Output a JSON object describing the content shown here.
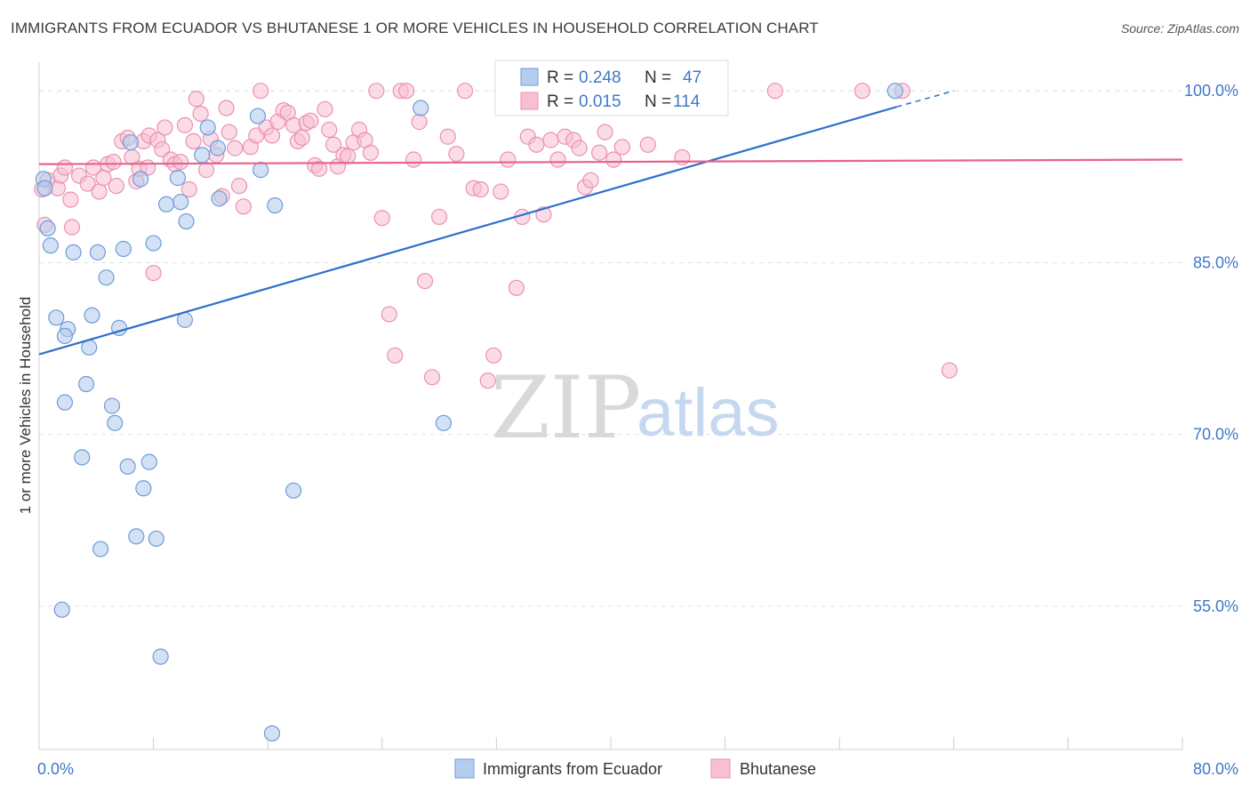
{
  "title": "IMMIGRANTS FROM ECUADOR VS BHUTANESE 1 OR MORE VEHICLES IN HOUSEHOLD CORRELATION CHART",
  "source": "Source: ZipAtlas.com",
  "watermark": {
    "zip": "ZIP",
    "atlas": "atlas"
  },
  "colors": {
    "ecuador_fill": "#b5cdef",
    "ecuador_stroke": "#6f9bd8",
    "ecuador_line": "#2f6fca",
    "bhutanese_fill": "#f7bfd1",
    "bhutanese_stroke": "#eb91b0",
    "bhutanese_line": "#e8628f",
    "tick_text": "#3f78c7",
    "grid": "#e2e2e2"
  },
  "stats_box": {
    "rows": [
      {
        "r_label": "R =",
        "r_value": "0.248",
        "n_label": "N =",
        "n_value": "47"
      },
      {
        "r_label": "R =",
        "r_value": "0.015",
        "n_label": "N =",
        "n_value": "114"
      }
    ]
  },
  "chart_data": {
    "type": "scatter",
    "title": "IMMIGRANTS FROM ECUADOR VS BHUTANESE 1 OR MORE VEHICLES IN HOUSEHOLD CORRELATION CHART",
    "xlabel": "",
    "ylabel": "1 or more Vehicles in Household",
    "xlim": [
      0,
      80
    ],
    "ylim": [
      42.5,
      102.5
    ],
    "x_tick_labels": [
      {
        "value": 0,
        "label": "0.0%"
      },
      {
        "value": 80,
        "label": "80.0%"
      }
    ],
    "y_tick_labels": [
      {
        "value": 100,
        "label": "100.0%"
      },
      {
        "value": 85,
        "label": "85.0%"
      },
      {
        "value": 70,
        "label": "70.0%"
      },
      {
        "value": 55,
        "label": "55.0%"
      }
    ],
    "grid": true,
    "legend_position": "bottom",
    "series": [
      {
        "name": "Immigrants from Ecuador",
        "R": 0.248,
        "N": 47,
        "trend": {
          "x0": 0,
          "y0": 77.0,
          "x1": 60,
          "y1": 98.6,
          "dash_to_x": 64,
          "dash_to_y": 100.0
        },
        "points": [
          [
            0.3,
            92.3
          ],
          [
            0.4,
            91.5
          ],
          [
            0.6,
            88.0
          ],
          [
            0.8,
            86.5
          ],
          [
            2.4,
            85.9
          ],
          [
            4.1,
            85.9
          ],
          [
            5.9,
            86.2
          ],
          [
            8.0,
            86.7
          ],
          [
            4.7,
            83.7
          ],
          [
            1.2,
            80.2
          ],
          [
            3.7,
            80.4
          ],
          [
            2.0,
            79.2
          ],
          [
            5.6,
            79.3
          ],
          [
            10.2,
            80.0
          ],
          [
            1.8,
            78.6
          ],
          [
            3.5,
            77.6
          ],
          [
            3.3,
            74.4
          ],
          [
            1.8,
            72.8
          ],
          [
            5.1,
            72.5
          ],
          [
            5.3,
            71.0
          ],
          [
            3.0,
            68.0
          ],
          [
            6.2,
            67.2
          ],
          [
            7.7,
            67.6
          ],
          [
            7.3,
            65.3
          ],
          [
            17.8,
            65.1
          ],
          [
            6.8,
            61.1
          ],
          [
            8.2,
            60.9
          ],
          [
            4.3,
            60.0
          ],
          [
            1.6,
            54.7
          ],
          [
            8.5,
            50.6
          ],
          [
            16.3,
            43.9
          ],
          [
            9.9,
            90.3
          ],
          [
            8.9,
            90.1
          ],
          [
            10.3,
            88.6
          ],
          [
            16.5,
            90.0
          ],
          [
            12.6,
            90.6
          ],
          [
            7.1,
            92.3
          ],
          [
            9.7,
            92.4
          ],
          [
            15.5,
            93.1
          ],
          [
            11.4,
            94.4
          ],
          [
            12.5,
            95.0
          ],
          [
            6.4,
            95.5
          ],
          [
            11.8,
            96.8
          ],
          [
            15.3,
            97.8
          ],
          [
            26.7,
            98.5
          ],
          [
            28.3,
            71.0
          ],
          [
            59.9,
            100.0
          ]
        ]
      },
      {
        "name": "Bhutanese",
        "R": 0.015,
        "N": 114,
        "trend": {
          "x0": 0,
          "y0": 93.6,
          "x1": 80,
          "y1": 94.0
        },
        "points": [
          [
            0.2,
            91.4
          ],
          [
            0.4,
            88.3
          ],
          [
            0.6,
            92.2
          ],
          [
            1.3,
            91.5
          ],
          [
            1.5,
            92.6
          ],
          [
            1.8,
            93.3
          ],
          [
            2.2,
            90.5
          ],
          [
            2.3,
            88.1
          ],
          [
            2.8,
            92.6
          ],
          [
            3.4,
            91.9
          ],
          [
            3.8,
            93.3
          ],
          [
            4.2,
            91.2
          ],
          [
            4.5,
            92.4
          ],
          [
            4.8,
            93.6
          ],
          [
            5.2,
            93.8
          ],
          [
            5.4,
            91.7
          ],
          [
            5.8,
            95.6
          ],
          [
            6.2,
            95.9
          ],
          [
            6.5,
            94.2
          ],
          [
            6.8,
            92.1
          ],
          [
            7.0,
            93.2
          ],
          [
            7.3,
            95.6
          ],
          [
            7.6,
            93.3
          ],
          [
            7.7,
            96.1
          ],
          [
            8.0,
            84.1
          ],
          [
            8.3,
            95.7
          ],
          [
            8.6,
            94.9
          ],
          [
            8.8,
            96.8
          ],
          [
            9.2,
            94.0
          ],
          [
            9.5,
            93.6
          ],
          [
            9.9,
            93.8
          ],
          [
            10.2,
            97.0
          ],
          [
            10.5,
            91.4
          ],
          [
            10.8,
            95.6
          ],
          [
            11.0,
            99.3
          ],
          [
            11.3,
            98.0
          ],
          [
            11.7,
            93.1
          ],
          [
            12.0,
            95.8
          ],
          [
            12.4,
            94.4
          ],
          [
            12.8,
            90.8
          ],
          [
            13.1,
            98.5
          ],
          [
            13.3,
            96.4
          ],
          [
            13.7,
            95.0
          ],
          [
            14.0,
            91.7
          ],
          [
            14.3,
            89.9
          ],
          [
            14.8,
            95.1
          ],
          [
            15.2,
            96.1
          ],
          [
            15.5,
            100.0
          ],
          [
            15.9,
            96.8
          ],
          [
            16.3,
            96.1
          ],
          [
            16.7,
            97.3
          ],
          [
            17.1,
            98.3
          ],
          [
            17.4,
            98.1
          ],
          [
            17.8,
            97.0
          ],
          [
            18.1,
            95.6
          ],
          [
            18.4,
            95.9
          ],
          [
            18.7,
            97.2
          ],
          [
            19.0,
            97.4
          ],
          [
            19.3,
            93.5
          ],
          [
            19.6,
            93.2
          ],
          [
            20.0,
            98.4
          ],
          [
            20.3,
            96.6
          ],
          [
            20.6,
            95.3
          ],
          [
            20.9,
            93.4
          ],
          [
            21.3,
            94.4
          ],
          [
            21.6,
            94.3
          ],
          [
            22.0,
            95.5
          ],
          [
            22.4,
            96.6
          ],
          [
            22.8,
            95.7
          ],
          [
            23.2,
            94.6
          ],
          [
            23.6,
            100.0
          ],
          [
            24.0,
            88.9
          ],
          [
            24.5,
            80.5
          ],
          [
            24.9,
            76.9
          ],
          [
            25.3,
            100.0
          ],
          [
            25.7,
            100.0
          ],
          [
            26.2,
            94.0
          ],
          [
            26.6,
            97.3
          ],
          [
            27.0,
            83.4
          ],
          [
            27.5,
            75.0
          ],
          [
            28.0,
            89.0
          ],
          [
            28.6,
            96.0
          ],
          [
            29.2,
            94.5
          ],
          [
            29.8,
            100.0
          ],
          [
            30.4,
            91.5
          ],
          [
            30.9,
            91.4
          ],
          [
            31.4,
            74.7
          ],
          [
            31.8,
            76.9
          ],
          [
            32.3,
            91.2
          ],
          [
            32.8,
            94.0
          ],
          [
            33.4,
            82.8
          ],
          [
            33.8,
            89.0
          ],
          [
            34.2,
            96.0
          ],
          [
            34.8,
            95.3
          ],
          [
            35.3,
            89.2
          ],
          [
            35.8,
            95.7
          ],
          [
            36.3,
            94.0
          ],
          [
            36.8,
            96.0
          ],
          [
            37.4,
            95.7
          ],
          [
            37.8,
            95.0
          ],
          [
            38.2,
            91.6
          ],
          [
            38.6,
            92.2
          ],
          [
            39.2,
            94.6
          ],
          [
            39.6,
            96.4
          ],
          [
            40.2,
            94.0
          ],
          [
            40.8,
            95.1
          ],
          [
            42.6,
            95.3
          ],
          [
            43.6,
            100.0
          ],
          [
            45.0,
            94.2
          ],
          [
            46.0,
            100.0
          ],
          [
            51.5,
            100.0
          ],
          [
            57.6,
            100.0
          ],
          [
            60.4,
            100.0
          ],
          [
            63.7,
            75.6
          ]
        ]
      }
    ]
  },
  "legend": {
    "items": [
      {
        "label": "Immigrants from Ecuador"
      },
      {
        "label": "Bhutanese"
      }
    ]
  }
}
